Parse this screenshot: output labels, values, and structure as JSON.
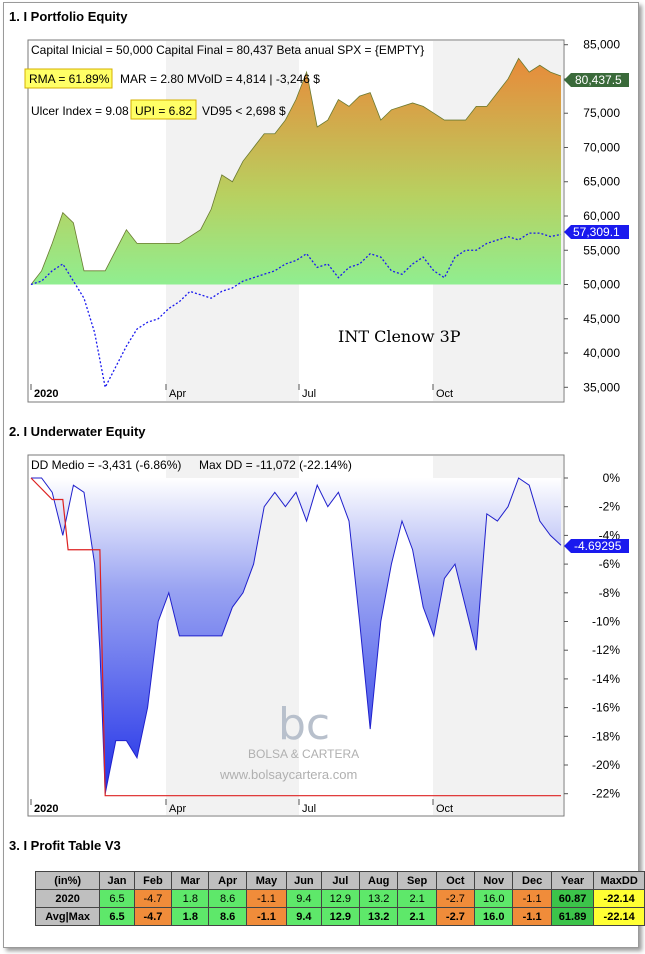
{
  "sections": {
    "s1": "1. I Portfolio Equity",
    "s2": "2. I Underwater Equity",
    "s3": "3. I Profit Table V3"
  },
  "equity": {
    "stats_line1": "Capital Inicial = 50,000  Capital Final = 80,437   Beta anual SPX = {EMPTY}",
    "rma": "RMA = 61.89%",
    "stats_line2": "MAR = 2.80   MVolD = 4,814 | -3,246 $",
    "ulcer": "Ulcer Index = 9.08",
    "upi": "UPI = 6.82",
    "vd95": "VD95 < 2,698 $",
    "watermark": "INT Clenow 3P",
    "last_value_label": "80,437.5",
    "bench_value_label": "57,309.1",
    "colors": {
      "highlight": "#ffff66",
      "last_tag": "#3a6a3a",
      "bench_tag": "#1a1aee",
      "fill_low": "#90ee90",
      "fill_high": "#f0a050"
    }
  },
  "underwater": {
    "dd_medio": "DD Medio = -3,431 (-6.86%)",
    "max_dd": "Max DD = -11,072 (-22.14%)",
    "last_label": "-4.69295",
    "logo_letters": "bc",
    "logo_text": "BOLSA & CARTERA",
    "logo_url": "www.bolsaycartera.com"
  },
  "chart_data": [
    {
      "type": "area",
      "title": "1. I Portfolio Equity",
      "x_months": [
        "2020",
        "Apr",
        "Jul",
        "Oct"
      ],
      "ylim": [
        33000,
        87000
      ],
      "y_ticks": [
        "85,000",
        "80,000",
        "75,000",
        "70,000",
        "65,000",
        "60,000",
        "55,000",
        "50,000",
        "45,000",
        "40,000",
        "35,000"
      ],
      "series": [
        {
          "name": "Equity",
          "x": [
            0,
            2,
            4,
            6,
            8,
            10,
            12,
            14,
            16,
            18,
            20,
            22,
            24,
            26,
            28,
            30,
            32,
            34,
            36,
            38,
            40,
            42,
            44,
            46,
            48,
            50,
            52,
            54,
            56,
            58,
            60,
            62,
            64,
            66,
            68,
            70,
            72,
            74,
            76,
            78,
            80,
            82,
            84,
            86,
            88,
            90,
            92,
            94,
            96,
            98,
            100
          ],
          "values": [
            50000,
            52000,
            56000,
            60500,
            59000,
            52000,
            52000,
            52000,
            55000,
            58000,
            56000,
            56000,
            56000,
            56000,
            56000,
            57000,
            58000,
            61000,
            66000,
            65000,
            68000,
            70000,
            72000,
            72000,
            74000,
            77000,
            81000,
            73000,
            74000,
            77000,
            76000,
            77500,
            78000,
            74000,
            75500,
            76000,
            76500,
            76000,
            75000,
            74000,
            74000,
            74000,
            76000,
            76000,
            78000,
            80000,
            83000,
            81000,
            82000,
            81000,
            80437
          ]
        },
        {
          "name": "Benchmark",
          "x": [
            0,
            2,
            4,
            6,
            8,
            10,
            12,
            14,
            16,
            18,
            20,
            22,
            24,
            26,
            28,
            30,
            32,
            34,
            36,
            38,
            40,
            42,
            44,
            46,
            48,
            50,
            52,
            54,
            56,
            58,
            60,
            62,
            64,
            66,
            68,
            70,
            72,
            74,
            76,
            78,
            80,
            82,
            84,
            86,
            88,
            90,
            92,
            94,
            96,
            98,
            100
          ],
          "values": [
            50000,
            50500,
            52000,
            53000,
            50500,
            48000,
            43000,
            35000,
            38000,
            41000,
            43500,
            44500,
            45000,
            46500,
            47500,
            49000,
            48500,
            48000,
            49000,
            49500,
            50500,
            51000,
            51500,
            52000,
            53000,
            53500,
            54500,
            52500,
            53000,
            51000,
            52500,
            53000,
            54500,
            54000,
            52000,
            51500,
            53000,
            54000,
            52000,
            51000,
            54000,
            55000,
            55000,
            56000,
            56500,
            57000,
            56500,
            57500,
            57500,
            57000,
            57309
          ]
        }
      ]
    },
    {
      "type": "area",
      "title": "2. I Underwater Equity",
      "x_months": [
        "2020",
        "Apr",
        "Jul",
        "Oct"
      ],
      "ylim": [
        -23,
        1
      ],
      "y_ticks": [
        "0%",
        "-2%",
        "-4%",
        "-6%",
        "-8%",
        "-10%",
        "-12%",
        "-14%",
        "-16%",
        "-18%",
        "-20%",
        "-22%"
      ],
      "series": [
        {
          "name": "Drawdown",
          "x": [
            0,
            2,
            4,
            6,
            8,
            10,
            12,
            13,
            14,
            16,
            18,
            20,
            22,
            24,
            26,
            28,
            30,
            32,
            34,
            36,
            38,
            40,
            42,
            44,
            46,
            48,
            50,
            52,
            54,
            56,
            58,
            60,
            62,
            64,
            66,
            68,
            70,
            72,
            74,
            76,
            78,
            80,
            82,
            84,
            86,
            88,
            90,
            92,
            94,
            96,
            98,
            100
          ],
          "values": [
            0,
            0,
            -1,
            -4,
            -0.5,
            -1,
            -6,
            -12,
            -22,
            -18.3,
            -18.3,
            -19.5,
            -16,
            -10,
            -8,
            -11,
            -11,
            -11,
            -11,
            -11,
            -9,
            -8,
            -6,
            -2,
            -1,
            -2,
            -1,
            -3,
            -0.5,
            -2,
            -1,
            -3,
            -10,
            -17.5,
            -10,
            -6,
            -3,
            -5,
            -9,
            -11,
            -7,
            -6,
            -9,
            -12,
            -2.5,
            -3,
            -2,
            0,
            -0.5,
            -3,
            -4,
            -4.69
          ]
        },
        {
          "name": "Max DD",
          "x": [
            0,
            4,
            6,
            7,
            13,
            14,
            100
          ],
          "values": [
            0,
            -1.5,
            -1.5,
            -5,
            -5,
            -22.14,
            -22.14
          ]
        }
      ]
    },
    {
      "type": "table",
      "title": "3. I Profit Table V3",
      "columns": [
        "(in%)",
        "Jan",
        "Feb",
        "Mar",
        "Apr",
        "May",
        "Jun",
        "Jul",
        "Aug",
        "Sep",
        "Oct",
        "Nov",
        "Dec",
        "Year",
        "MaxDD"
      ],
      "rows": [
        {
          "label": "2020",
          "cells": [
            "6.5",
            "-4.7",
            "1.8",
            "8.6",
            "-1.1",
            "9.4",
            "12.9",
            "13.2",
            "2.1",
            "-2.7",
            "16.0",
            "-1.1",
            "60.87",
            "-22.14"
          ]
        },
        {
          "label": "Avg|Max",
          "cells": [
            "6.5",
            "-4.7",
            "1.8",
            "8.6",
            "-1.1",
            "9.4",
            "12.9",
            "13.2",
            "2.1",
            "-2.7",
            "16.0",
            "-1.1",
            "61.89",
            "-22.14"
          ]
        }
      ]
    }
  ]
}
